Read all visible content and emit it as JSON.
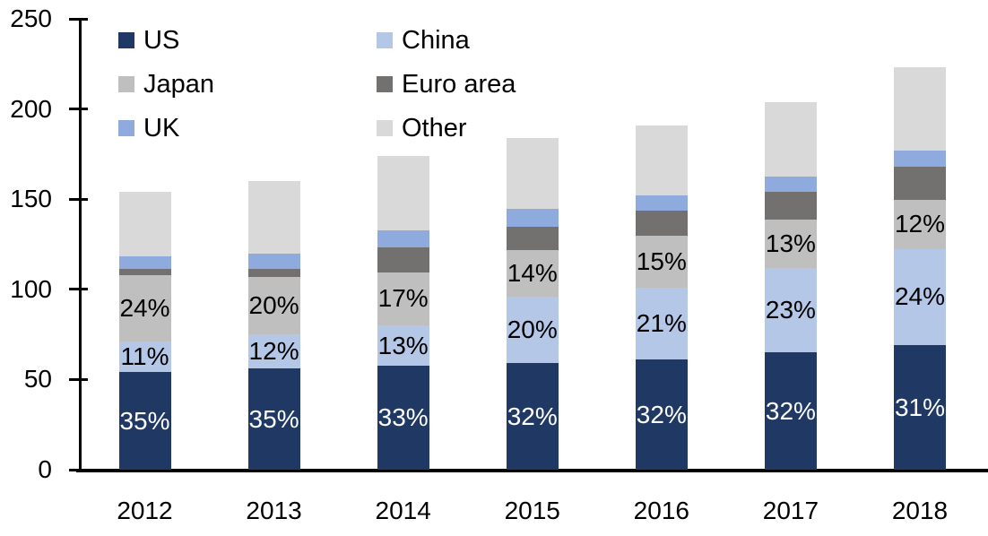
{
  "chart_data": {
    "type": "bar",
    "stacked": true,
    "title": "",
    "xlabel": "",
    "ylabel": "",
    "categories": [
      "2012",
      "2013",
      "2014",
      "2015",
      "2016",
      "2017",
      "2018"
    ],
    "series": [
      {
        "name": "US",
        "color": "#1f3864",
        "values": [
          54,
          56,
          57.5,
          59,
          61,
          65,
          69
        ],
        "labels": [
          "35%",
          "35%",
          "33%",
          "32%",
          "32%",
          "32%",
          "31%"
        ],
        "label_color": "#ffffff"
      },
      {
        "name": "China",
        "color": "#b4c7e7",
        "values": [
          17,
          19,
          22.5,
          37,
          40,
          47,
          53.5
        ],
        "labels": [
          "11%",
          "12%",
          "13%",
          "20%",
          "21%",
          "23%",
          "24%"
        ],
        "label_color": "#000000"
      },
      {
        "name": "Japan",
        "color": "#bfbfbf",
        "values": [
          37,
          32,
          29.5,
          26,
          28.5,
          26.5,
          27
        ],
        "labels": [
          "24%",
          "20%",
          "17%",
          "14%",
          "15%",
          "13%",
          "12%"
        ],
        "label_color": "#000000"
      },
      {
        "name": "Euro area",
        "color": "#737070",
        "values": [
          3.5,
          4.5,
          14,
          12.5,
          14,
          15.5,
          18.5
        ]
      },
      {
        "name": "UK",
        "color": "#8faadc",
        "values": [
          7,
          8.5,
          9,
          10,
          8.5,
          8.5,
          9
        ]
      },
      {
        "name": "Other",
        "color": "#d9d9d9",
        "values": [
          35.5,
          40,
          41.5,
          39.5,
          39,
          41.5,
          46
        ]
      }
    ],
    "totals": [
      154,
      160,
      174,
      184,
      191,
      204,
      223
    ],
    "y_axis": {
      "min": 0,
      "max": 250,
      "step": 50,
      "tick_labels": [
        "0",
        "50",
        "100",
        "150",
        "200",
        "250"
      ]
    },
    "legend": {
      "position": "top-left",
      "columns": 2,
      "entries": [
        "US",
        "China",
        "Japan",
        "Euro area",
        "UK",
        "Other"
      ]
    },
    "grid": false,
    "axis_color": "#000000",
    "background_color": "#ffffff"
  }
}
